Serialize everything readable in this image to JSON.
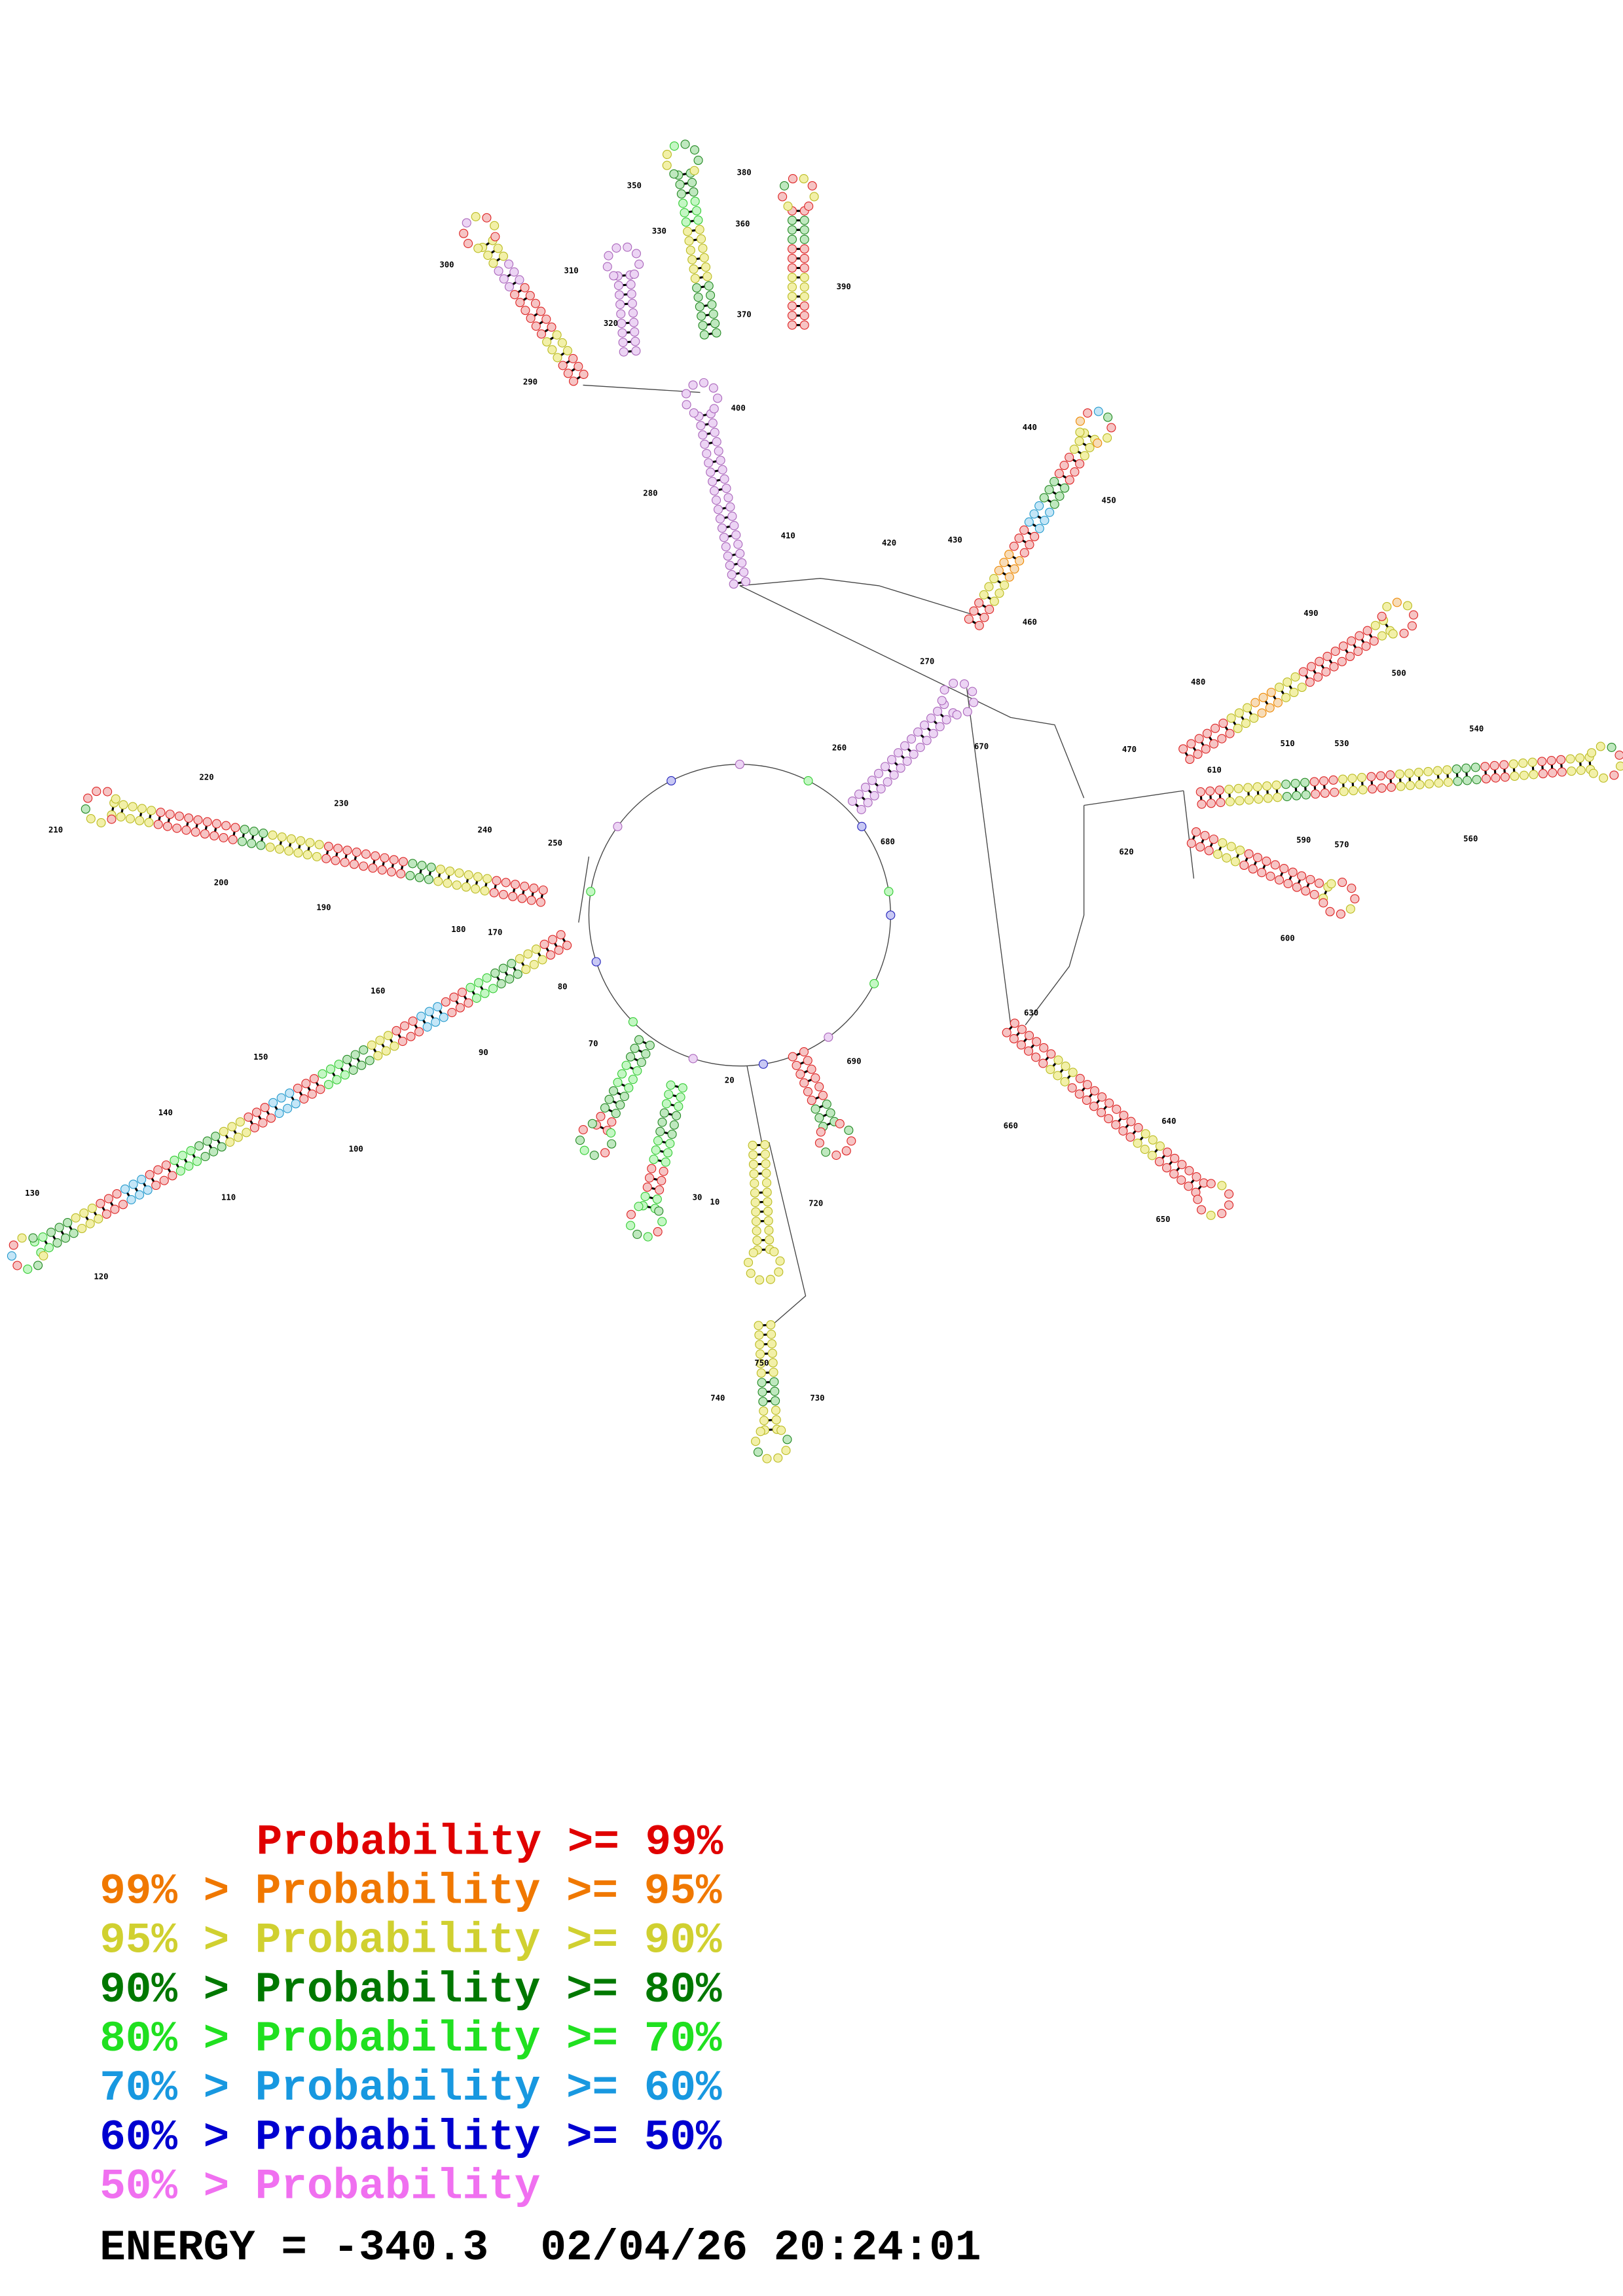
{
  "position_labels": [
    "300",
    "310",
    "320",
    "330",
    "350",
    "360",
    "380",
    "370",
    "390",
    "290",
    "400",
    "280",
    "410",
    "420",
    "430",
    "440",
    "450",
    "460",
    "490",
    "500",
    "480",
    "510",
    "470",
    "610",
    "530",
    "540",
    "560",
    "570",
    "590",
    "600",
    "620",
    "270",
    "670",
    "260",
    "680",
    "250",
    "220",
    "230",
    "210",
    "200",
    "190",
    "240",
    "180",
    "170",
    "80",
    "160",
    "90",
    "150",
    "100",
    "140",
    "110",
    "130",
    "120",
    "70",
    "20",
    "690",
    "30",
    "10",
    "720",
    "630",
    "660",
    "640",
    "650",
    "750",
    "740",
    "730"
  ],
  "legend": [
    "Probability >= 99%",
    "99% > Probability >= 95%",
    "95% > Probability >= 90%",
    "90% > Probability >= 80%",
    "80% > Probability >= 70%",
    "70% > Probability >= 60%",
    "60% > Probability >= 50%",
    "50% > Probability"
  ],
  "footer": "ENERGY = -340.3  02/04/26 20:24:01"
}
